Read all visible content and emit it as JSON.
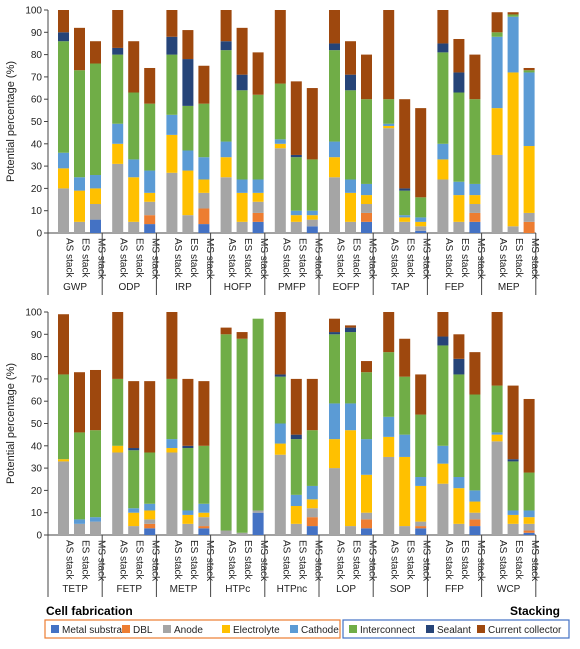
{
  "chart_data": [
    {
      "type": "bar",
      "stacked": true,
      "ylabel": "Potential percentage (%)",
      "ylim": [
        0,
        100
      ],
      "yticks": [
        0,
        10,
        20,
        30,
        40,
        50,
        60,
        70,
        80,
        90,
        100
      ],
      "categories": [
        "AS stack",
        "ES stack",
        "MS stack"
      ],
      "components": [
        "Metal substrate",
        "DBL",
        "Anode",
        "Electrolyte",
        "Cathode",
        "Interconnect",
        "Sealant",
        "Current collector"
      ],
      "groups": [
        {
          "name": "GWP",
          "bars": [
            [
              0,
              0,
              20,
              9,
              7,
              50,
              4,
              10
            ],
            [
              0,
              0,
              5,
              14,
              6,
              48,
              0,
              19
            ],
            [
              6,
              0,
              7,
              7,
              6,
              50,
              0,
              10
            ]
          ]
        },
        {
          "name": "ODP",
          "bars": [
            [
              0,
              0,
              31,
              9,
              9,
              31,
              3,
              17
            ],
            [
              0,
              0,
              5,
              20,
              8,
              30,
              0,
              23
            ],
            [
              4,
              4,
              6,
              4,
              10,
              30,
              0,
              16
            ]
          ]
        },
        {
          "name": "IRP",
          "bars": [
            [
              0,
              0,
              27,
              17,
              9,
              27,
              8,
              12
            ],
            [
              0,
              0,
              8,
              20,
              9,
              20,
              21,
              13
            ],
            [
              4,
              7,
              7,
              6,
              10,
              24,
              0,
              17
            ]
          ]
        },
        {
          "name": "HOFP",
          "bars": [
            [
              0,
              0,
              25,
              9,
              7,
              41,
              4,
              14
            ],
            [
              0,
              0,
              5,
              13,
              6,
              40,
              7,
              21
            ],
            [
              5,
              4,
              5,
              4,
              6,
              38,
              0,
              19
            ]
          ]
        },
        {
          "name": "PMFP",
          "bars": [
            [
              0,
              0,
              38,
              2,
              2,
              25,
              0,
              33
            ],
            [
              0,
              0,
              5,
              3,
              2,
              24,
              1,
              33
            ],
            [
              3,
              0,
              3,
              2,
              2,
              23,
              0,
              32
            ]
          ]
        },
        {
          "name": "EOFP",
          "bars": [
            [
              0,
              0,
              25,
              9,
              7,
              41,
              3,
              15
            ],
            [
              0,
              0,
              5,
              13,
              6,
              40,
              7,
              15
            ],
            [
              5,
              4,
              4,
              4,
              5,
              38,
              0,
              20
            ]
          ]
        },
        {
          "name": "TAP",
          "bars": [
            [
              0,
              0,
              47,
              1,
              1,
              11,
              0,
              40
            ],
            [
              0,
              0,
              5,
              2,
              1,
              11,
              1,
              40
            ],
            [
              1,
              0,
              2,
              2,
              2,
              9,
              0,
              40
            ]
          ]
        },
        {
          "name": "FEP",
          "bars": [
            [
              0,
              0,
              24,
              9,
              7,
              41,
              4,
              15
            ],
            [
              0,
              0,
              5,
              12,
              6,
              40,
              9,
              15
            ],
            [
              5,
              4,
              4,
              4,
              5,
              38,
              0,
              20
            ]
          ]
        },
        {
          "name": "MEP",
          "bars": [
            [
              0,
              0,
              35,
              21,
              32,
              2,
              0,
              9
            ],
            [
              0,
              0,
              3,
              69,
              25,
              1,
              0,
              1
            ],
            [
              0,
              5,
              4,
              30,
              33,
              1,
              0,
              1
            ]
          ]
        },
        {
          "name": "TETP",
          "bars": [
            [
              0,
              0,
              33,
              1,
              0,
              38,
              0,
              27
            ],
            [
              0,
              0,
              5,
              0,
              2,
              39,
              0,
              27
            ],
            [
              0,
              0,
              6,
              0,
              2,
              39,
              0,
              27
            ]
          ]
        },
        {
          "name": "FETP",
          "bars": [
            [
              0,
              0,
              37,
              3,
              0,
              30,
              0,
              30
            ],
            [
              0,
              0,
              4,
              6,
              2,
              26,
              1,
              30
            ],
            [
              3,
              2,
              2,
              4,
              3,
              23,
              0,
              32
            ]
          ]
        },
        {
          "name": "METP",
          "bars": [
            [
              0,
              0,
              37,
              2,
              4,
              27,
              0,
              30
            ],
            [
              0,
              0,
              5,
              4,
              2,
              28,
              1,
              30
            ],
            [
              3,
              1,
              4,
              2,
              4,
              26,
              0,
              29
            ]
          ]
        },
        {
          "name": "HTPc",
          "bars": [
            [
              0,
              0,
              2,
              0,
              0,
              88,
              0,
              3
            ],
            [
              0,
              0,
              1,
              0,
              0,
              87,
              0,
              3
            ],
            [
              10,
              0,
              1,
              0,
              0,
              86,
              0,
              0
            ]
          ]
        },
        {
          "name": "HTPnc",
          "bars": [
            [
              0,
              0,
              36,
              5,
              9,
              21,
              1,
              28
            ],
            [
              0,
              0,
              5,
              8,
              5,
              25,
              2,
              25
            ],
            [
              4,
              4,
              4,
              4,
              6,
              25,
              0,
              23
            ]
          ]
        },
        {
          "name": "LOP",
          "bars": [
            [
              0,
              0,
              30,
              13,
              16,
              31,
              1,
              6
            ],
            [
              0,
              0,
              4,
              43,
              12,
              32,
              2,
              1
            ],
            [
              3,
              4,
              3,
              17,
              16,
              30,
              0,
              5
            ]
          ]
        },
        {
          "name": "SOP",
          "bars": [
            [
              0,
              0,
              35,
              9,
              9,
              29,
              0,
              18
            ],
            [
              0,
              0,
              4,
              31,
              10,
              26,
              0,
              17
            ],
            [
              3,
              1,
              2,
              16,
              4,
              28,
              0,
              18
            ]
          ]
        },
        {
          "name": "FFP",
          "bars": [
            [
              0,
              0,
              23,
              9,
              8,
              45,
              4,
              11
            ],
            [
              0,
              0,
              5,
              16,
              5,
              46,
              7,
              11
            ],
            [
              4,
              3,
              3,
              5,
              5,
              43,
              0,
              19
            ]
          ]
        },
        {
          "name": "WCP",
          "bars": [
            [
              0,
              0,
              42,
              3,
              1,
              21,
              0,
              33
            ],
            [
              0,
              0,
              5,
              4,
              2,
              22,
              1,
              33
            ],
            [
              1,
              1,
              3,
              3,
              3,
              17,
              0,
              33
            ]
          ]
        }
      ]
    }
  ],
  "colors": [
    "#4472c4",
    "#ed7d31",
    "#a5a5a5",
    "#ffc000",
    "#5b9bd5",
    "#70ad47",
    "#264478",
    "#9e480e"
  ],
  "labels": {
    "cell_fabrication": "Cell fabrication",
    "stacking": "Stacking"
  }
}
